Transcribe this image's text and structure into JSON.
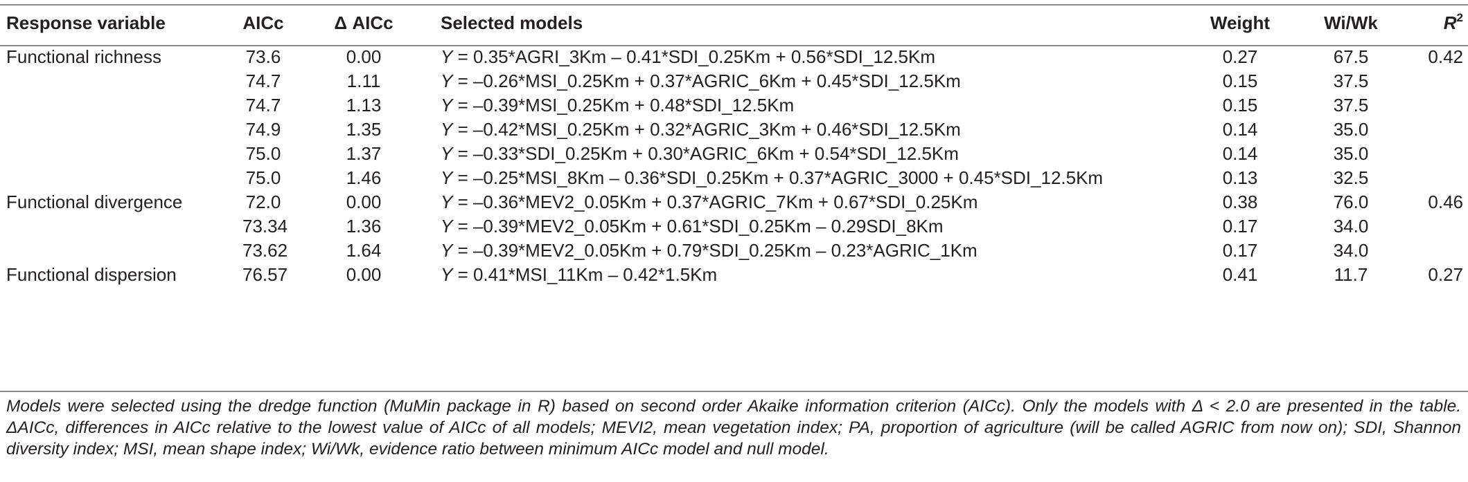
{
  "table": {
    "headers": {
      "response": "Response variable",
      "aicc": "AICc",
      "delta_aicc": "Δ AICc",
      "models": "Selected models",
      "weight": "Weight",
      "wiwk": "Wi/Wk",
      "r2_letter": "R",
      "r2_sup": "2"
    },
    "rows": [
      {
        "response": "Functional richness",
        "aicc": "73.6",
        "delta": "0.00",
        "y": "Y",
        "model": " = 0.35*AGRI_3Km – 0.41*SDI_0.25Km + 0.56*SDI_12.5Km",
        "weight": "0.27",
        "wiwk": "67.5",
        "r2": "0.42"
      },
      {
        "response": "",
        "aicc": "74.7",
        "delta": "1.11",
        "y": "Y",
        "model": " = –0.26*MSI_0.25Km + 0.37*AGRIC_6Km + 0.45*SDI_12.5Km",
        "weight": "0.15",
        "wiwk": "37.5",
        "r2": ""
      },
      {
        "response": "",
        "aicc": "74.7",
        "delta": "1.13",
        "y": "Y",
        "model": " = –0.39*MSI_0.25Km + 0.48*SDI_12.5Km",
        "weight": "0.15",
        "wiwk": "37.5",
        "r2": ""
      },
      {
        "response": "",
        "aicc": "74.9",
        "delta": "1.35",
        "y": "Y",
        "model": " = –0.42*MSI_0.25Km + 0.32*AGRIC_3Km + 0.46*SDI_12.5Km",
        "weight": "0.14",
        "wiwk": "35.0",
        "r2": ""
      },
      {
        "response": "",
        "aicc": "75.0",
        "delta": "1.37",
        "y": "Y",
        "model": " = –0.33*SDI_0.25Km + 0.30*AGRIC_6Km + 0.54*SDI_12.5Km",
        "weight": "0.14",
        "wiwk": "35.0",
        "r2": ""
      },
      {
        "response": "",
        "aicc": "75.0",
        "delta": "1.46",
        "y": "Y",
        "model": " = –0.25*MSI_8Km – 0.36*SDI_0.25Km + 0.37*AGRIC_3000 + 0.45*SDI_12.5Km",
        "weight": "0.13",
        "wiwk": "32.5",
        "r2": ""
      },
      {
        "response": "Functional divergence",
        "aicc": "72.0",
        "delta": "0.00",
        "y": "Y",
        "model": " = –0.36*MEV2_0.05Km + 0.37*AGRIC_7Km + 0.67*SDI_0.25Km",
        "weight": "0.38",
        "wiwk": "76.0",
        "r2": "0.46"
      },
      {
        "response": "",
        "aicc": "73.34",
        "delta": "1.36",
        "y": "Y",
        "model": " = –0.39*MEV2_0.05Km + 0.61*SDI_0.25Km – 0.29SDI_8Km",
        "weight": "0.17",
        "wiwk": "34.0",
        "r2": ""
      },
      {
        "response": "",
        "aicc": "73.62",
        "delta": "1.64",
        "y": "Y",
        "model": " = –0.39*MEV2_0.05Km + 0.79*SDI_0.25Km – 0.23*AGRIC_1Km",
        "weight": "0.17",
        "wiwk": "34.0",
        "r2": ""
      },
      {
        "response": "Functional dispersion",
        "aicc": "76.57",
        "delta": "0.00",
        "y": "Y",
        "model": " = 0.41*MSI_11Km – 0.42*1.5Km",
        "weight": "0.41",
        "wiwk": "11.7",
        "r2": "0.27"
      }
    ]
  },
  "footnote": "Models were selected using the dredge function (MuMin package in R) based on second order Akaike information criterion (AICc). Only the models with Δ < 2.0 are presented in the table. ΔAICc, differences in AICc relative to the lowest value of AICc of all models; MEVI2, mean vegetation index; PA, proportion of agriculture (will be called AGRIC from now on); SDI, Shannon diversity index; MSI, mean shape index; Wi/Wk, evidence ratio between minimum AICc model and null model."
}
